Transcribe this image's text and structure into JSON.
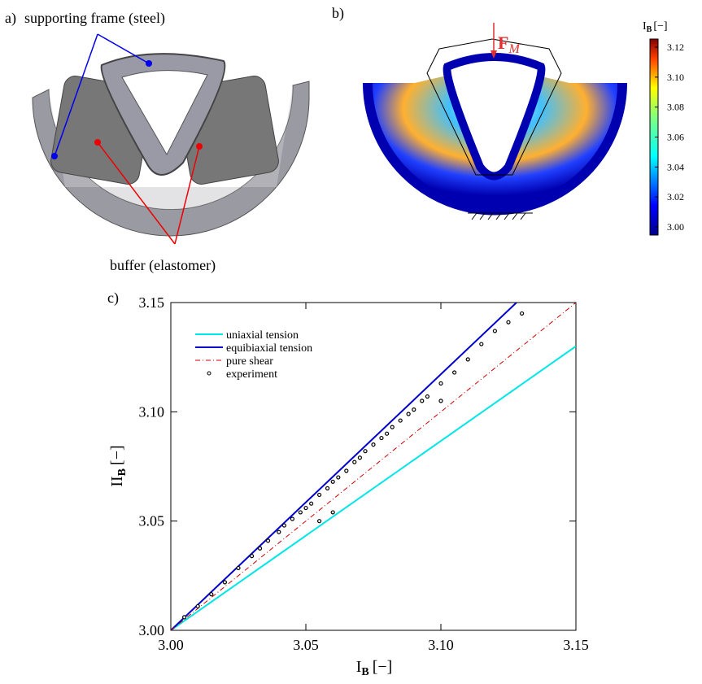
{
  "panel_a": {
    "label": "a)",
    "frame_text": "supporting frame (steel)",
    "buffer_text": "buffer (elastomer)"
  },
  "panel_b": {
    "label": "b)",
    "force_label": {
      "symbol": "F",
      "subscript": "M"
    }
  },
  "colorbar": {
    "label": {
      "symbol": "I",
      "subscript": "B",
      "unit": "[−]"
    },
    "lim": [
      3,
      3.12
    ],
    "ticks": [
      {
        "value": 3,
        "label": "3.00"
      },
      3.02,
      3.04,
      3.06,
      3.08,
      {
        "value": 3.1,
        "label": "3.10"
      },
      3.12
    ]
  },
  "chart_data": {
    "type": "line",
    "panel_label": "c)",
    "x_label": {
      "symbol": "I",
      "subscript": "B",
      "unit": "[−]"
    },
    "y_label": {
      "symbol": "II",
      "subscript": "B",
      "unit": "[−]"
    },
    "xlim": [
      3,
      3.15
    ],
    "ylim": [
      3,
      3.15
    ],
    "xticks": [
      {
        "value": 3,
        "label": "3.00"
      },
      3.05,
      {
        "value": 3.1,
        "label": "3.10"
      },
      3.15
    ],
    "yticks": [
      {
        "value": 3,
        "label": "3.00"
      },
      3.05,
      {
        "value": 3.1,
        "label": "3.10"
      },
      3.15
    ],
    "series": [
      {
        "name": "uniaxial tension",
        "color": "#00e5e5",
        "style": "solid",
        "x": [
          3,
          3.15
        ],
        "values": [
          3,
          3.13
        ]
      },
      {
        "name": "equibiaxial tension",
        "color": "#0000cc",
        "style": "solid",
        "x": [
          3,
          3.128
        ],
        "values": [
          3,
          3.15
        ]
      },
      {
        "name": "pure shear",
        "color": "#cc0000",
        "style": "dashdot",
        "x": [
          3,
          3.15
        ],
        "values": [
          3,
          3.15
        ]
      },
      {
        "name": "experiment",
        "color": "#000000",
        "style": "points",
        "x": [
          3.005,
          3.01,
          3.015,
          3.02,
          3.025,
          3.03,
          3.033,
          3.036,
          3.04,
          3.042,
          3.045,
          3.048,
          3.05,
          3.052,
          3.055,
          3.058,
          3.06,
          3.062,
          3.065,
          3.068,
          3.07,
          3.072,
          3.075,
          3.078,
          3.08,
          3.082,
          3.085,
          3.088,
          3.09,
          3.093,
          3.095,
          3.1,
          3.105,
          3.11,
          3.115,
          3.12,
          3.125,
          3.13,
          3.06,
          3.055,
          3.1
        ],
        "values": [
          3.006,
          3.011,
          3.0165,
          3.022,
          3.0285,
          3.034,
          3.0375,
          3.041,
          3.045,
          3.048,
          3.051,
          3.054,
          3.056,
          3.058,
          3.062,
          3.065,
          3.068,
          3.07,
          3.073,
          3.077,
          3.079,
          3.082,
          3.085,
          3.088,
          3.09,
          3.093,
          3.096,
          3.099,
          3.101,
          3.105,
          3.107,
          3.113,
          3.118,
          3.124,
          3.131,
          3.137,
          3.141,
          3.145,
          3.054,
          3.05,
          3.105
        ]
      }
    ]
  }
}
